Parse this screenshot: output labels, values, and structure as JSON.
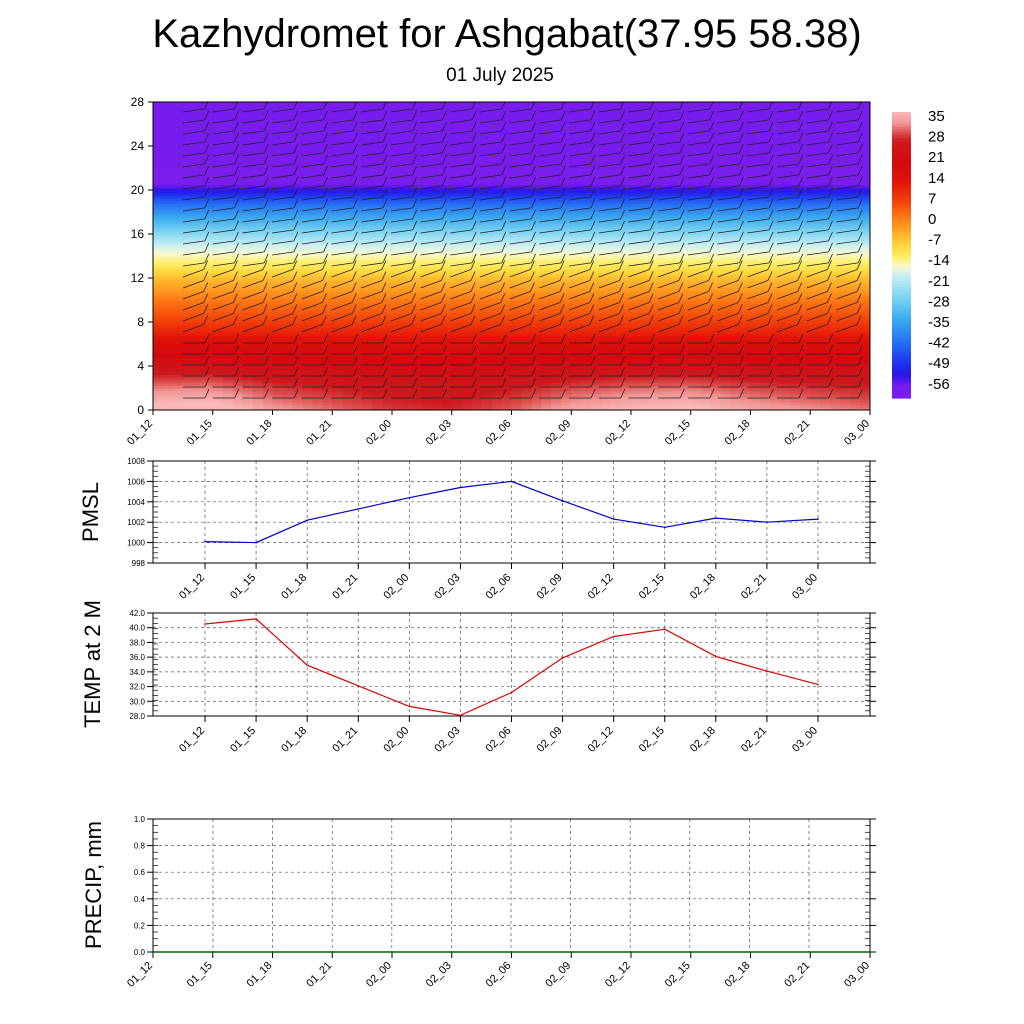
{
  "title": "Kazhydromet for Ashgabat(37.95 58.38)",
  "subtitle": "01 July 2025",
  "chart_data": [
    {
      "type": "heatmap",
      "description_of_field": "height-time section of temperature with wind barbs",
      "x_ticks": [
        "01_12",
        "01_15",
        "01_18",
        "01_21",
        "02_00",
        "02_03",
        "02_06",
        "02_09",
        "02_12",
        "02_15",
        "02_18",
        "02_21",
        "03_00"
      ],
      "y_ticks": [
        0,
        4,
        8,
        12,
        16,
        20,
        24,
        28
      ],
      "ylim": [
        0,
        28
      ],
      "colorbar_labels": [
        "35",
        "28",
        "21",
        "14",
        "7",
        "0",
        "-7",
        "-14",
        "-21",
        "-28",
        "-35",
        "-42",
        "-49",
        "-56"
      ],
      "colorbar_range": [
        -60,
        38
      ],
      "level_profile": {
        "heights": [
          0,
          2,
          4,
          6,
          7,
          8,
          10,
          12,
          13,
          14,
          15,
          16,
          17,
          18,
          19,
          20,
          21,
          22,
          24,
          28
        ],
        "temps": [
          35,
          30,
          24,
          17,
          12,
          8,
          2,
          -5,
          -10,
          -14,
          -18,
          -24,
          -30,
          -36,
          -43,
          -52,
          -60,
          -59,
          -58,
          -58
        ]
      },
      "surface_temps": [
        40.5,
        41.2,
        34.9,
        32.1,
        29.3,
        28.1,
        31.2,
        35.9,
        38.8,
        39.8,
        36.1,
        34.1,
        32.3
      ],
      "grid": false
    },
    {
      "type": "line",
      "ylabel": "PMSL",
      "x": [
        "01_12",
        "01_15",
        "01_18",
        "01_21",
        "02_00",
        "02_03",
        "02_06",
        "02_09",
        "02_12",
        "02_15",
        "02_18",
        "02_21",
        "03_00"
      ],
      "series": [
        {
          "values": [
            1000.1,
            1000.0,
            1002.2,
            1003.3,
            1004.4,
            1005.4,
            1006.0,
            1004.1,
            1002.3,
            1001.5,
            1002.4,
            1002.0,
            1002.3
          ]
        }
      ],
      "ylim": [
        998,
        1008
      ],
      "y_ticks": [
        "998",
        "1000",
        "1002",
        "1004",
        "1006",
        "1008"
      ],
      "grid": true,
      "color": "#0000cc"
    },
    {
      "type": "line",
      "ylabel": "TEMP at 2 M",
      "x": [
        "01_12",
        "01_15",
        "01_18",
        "01_21",
        "02_00",
        "02_03",
        "02_06",
        "02_09",
        "02_12",
        "02_15",
        "02_18",
        "02_21",
        "03_00"
      ],
      "series": [
        {
          "values": [
            40.5,
            41.2,
            34.9,
            32.1,
            29.3,
            28.1,
            31.2,
            35.9,
            38.8,
            39.8,
            36.1,
            34.1,
            32.3
          ]
        }
      ],
      "ylim": [
        28,
        42
      ],
      "y_ticks": [
        "28.0",
        "30.0",
        "32.0",
        "34.0",
        "36.0",
        "38.0",
        "40.0",
        "42.0"
      ],
      "grid": true,
      "color": "#dd0000"
    },
    {
      "type": "line",
      "ylabel": "PRECIP, mm",
      "x": [
        "01_12",
        "01_15",
        "01_18",
        "01_21",
        "02_00",
        "02_03",
        "02_06",
        "02_09",
        "02_12",
        "02_15",
        "02_18",
        "02_21",
        "03_00"
      ],
      "series": [
        {
          "values": [
            0,
            0,
            0,
            0,
            0,
            0,
            0,
            0,
            0,
            0,
            0,
            0,
            0
          ]
        }
      ],
      "ylim": [
        0,
        1
      ],
      "y_ticks": [
        "0.0",
        "0.2",
        "0.4",
        "0.6",
        "0.8",
        "1.0"
      ],
      "grid": true,
      "color": "#006600"
    }
  ]
}
